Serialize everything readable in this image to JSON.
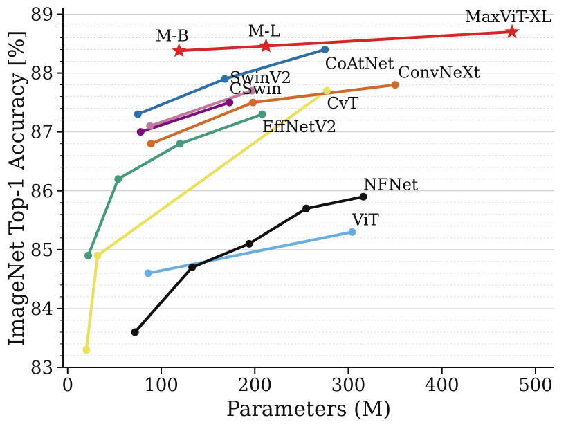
{
  "chart_data": {
    "type": "line",
    "title": "",
    "xlabel": "Parameters (M)",
    "ylabel": "ImageNet Top-1 Accuracy [%]",
    "xlim": [
      -5,
      520
    ],
    "ylim": [
      83,
      89.1
    ],
    "xticks": [
      0,
      100,
      200,
      300,
      400,
      500
    ],
    "yticks": [
      83,
      84,
      85,
      86,
      87,
      88,
      89
    ],
    "xtick_labels": [
      "0",
      "100",
      "200",
      "300",
      "400",
      "500"
    ],
    "ytick_labels": [
      "83",
      "84",
      "85",
      "86",
      "87",
      "88",
      "89"
    ],
    "grid": "horizontal",
    "legend": "none (direct labels)",
    "series": [
      {
        "name": "MaxViT",
        "color": "#d62728",
        "marker": "star",
        "x": [
          119,
          212,
          475
        ],
        "y": [
          88.38,
          88.46,
          88.7
        ],
        "point_labels": [
          "M-B",
          "M-L",
          "MaxViT-XL"
        ]
      },
      {
        "name": "CoAtNet",
        "color": "#2f6fa9",
        "marker": "circle",
        "x": [
          75,
          168,
          275
        ],
        "y": [
          87.3,
          87.9,
          88.4
        ]
      },
      {
        "name": "SwinV2",
        "color": "#c27ba0",
        "marker": "circle",
        "x": [
          88,
          197
        ],
        "y": [
          87.1,
          87.7
        ]
      },
      {
        "name": "CSwin",
        "color": "#7b0f7b",
        "marker": "circle",
        "x": [
          78,
          173
        ],
        "y": [
          87.0,
          87.5
        ]
      },
      {
        "name": "ConvNeXt",
        "color": "#cf6b2a",
        "marker": "circle",
        "x": [
          89,
          198,
          350
        ],
        "y": [
          86.8,
          87.5,
          87.8
        ]
      },
      {
        "name": "CvT",
        "color": "#ebe05b",
        "marker": "circle",
        "x": [
          20,
          32,
          277
        ],
        "y": [
          83.3,
          84.9,
          87.7
        ]
      },
      {
        "name": "EffNetV2",
        "color": "#449a79",
        "marker": "circle",
        "x": [
          22,
          54,
          120,
          208
        ],
        "y": [
          84.9,
          86.2,
          86.8,
          87.3
        ]
      },
      {
        "name": "NFNet",
        "color": "#111111",
        "marker": "circle",
        "x": [
          72,
          133,
          194,
          255,
          316
        ],
        "y": [
          83.6,
          84.7,
          85.1,
          85.7,
          85.9
        ]
      },
      {
        "name": "ViT",
        "color": "#6aaee0",
        "marker": "circle",
        "x": [
          86,
          304
        ],
        "y": [
          84.6,
          85.3
        ]
      }
    ]
  }
}
